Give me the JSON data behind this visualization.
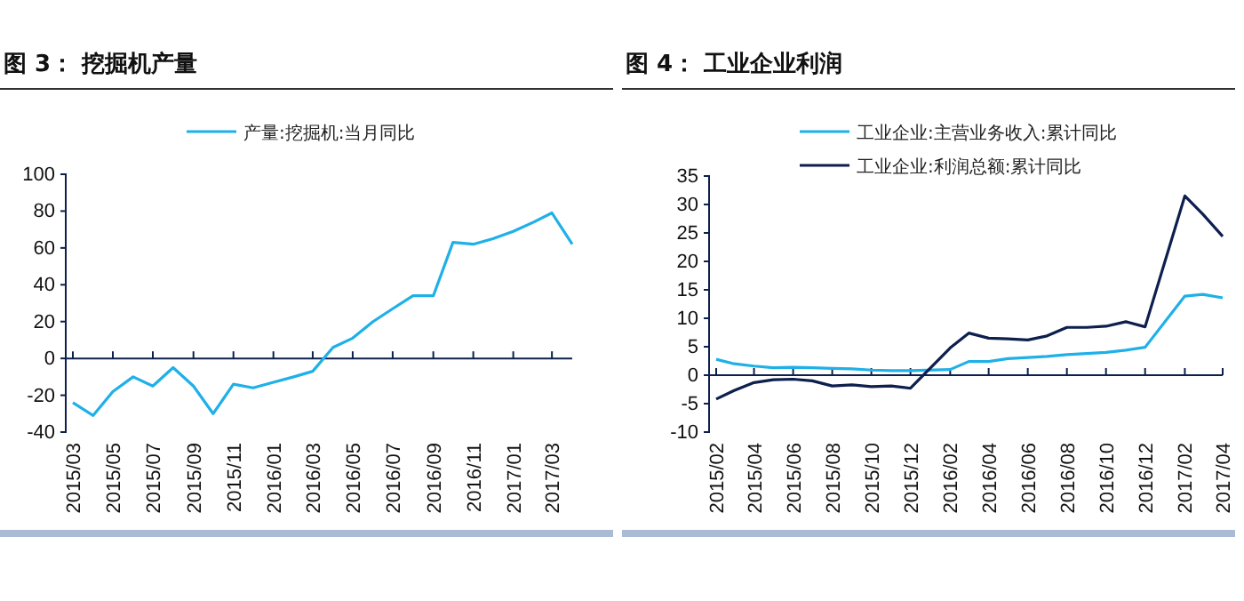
{
  "chart_data": [
    {
      "type": "line",
      "title": "图 3：  挖掘机产量",
      "legend": "top",
      "ylim": [
        -40,
        100
      ],
      "yticks": [
        -40,
        -20,
        0,
        20,
        40,
        60,
        80,
        100
      ],
      "xlim": [
        "2015-03",
        "2017-04"
      ],
      "xticks": [
        {
          "value": "2015-03",
          "label": "2015/03"
        },
        {
          "value": "2015-05",
          "label": "2015/05"
        },
        {
          "value": "2015-07",
          "label": "2015/07"
        },
        {
          "value": "2015-09",
          "label": "2015/09"
        },
        {
          "value": "2015-11",
          "label": "2015/11"
        },
        {
          "value": "2016-01",
          "label": "2016/01"
        },
        {
          "value": "2016-03",
          "label": "2016/03"
        },
        {
          "value": "2016-05",
          "label": "2016/05"
        },
        {
          "value": "2016-07",
          "label": "2016/07"
        },
        {
          "value": "2016-09",
          "label": "2016/09"
        },
        {
          "value": "2016-11",
          "label": "2016/11"
        },
        {
          "value": "2017-01",
          "label": "2017/01"
        },
        {
          "value": "2017-03",
          "label": "2017/03"
        }
      ],
      "x": [
        "2015-03",
        "2015-04",
        "2015-05",
        "2015-06",
        "2015-07",
        "2015-08",
        "2015-09",
        "2015-10",
        "2015-11",
        "2015-12",
        "2016-01",
        "2016-02",
        "2016-03",
        "2016-04",
        "2016-05",
        "2016-06",
        "2016-07",
        "2016-08",
        "2016-09",
        "2016-10",
        "2016-11",
        "2016-12",
        "2017-01",
        "2017-02",
        "2017-03",
        "2017-04"
      ],
      "series": [
        {
          "name": "产量:挖掘机:当月同比",
          "color": "#1fb0e8",
          "values": [
            -24,
            -31,
            -18,
            -10,
            -15,
            -5,
            -15,
            -30,
            -14,
            -16,
            -13,
            -10,
            -7,
            6,
            11,
            20,
            27,
            34,
            34,
            63,
            62,
            65,
            69,
            74,
            79,
            62
          ]
        }
      ]
    },
    {
      "type": "line",
      "title": "图 4：     工业企业利润",
      "legend": "top",
      "ylim": [
        -10,
        35
      ],
      "yticks": [
        -10,
        -5,
        0,
        5,
        10,
        15,
        20,
        25,
        30,
        35
      ],
      "xlim": [
        "2015-02",
        "2017-04"
      ],
      "xticks": [
        {
          "value": "2015-02",
          "label": "2015/02"
        },
        {
          "value": "2015-04",
          "label": "2015/04"
        },
        {
          "value": "2015-06",
          "label": "2015/06"
        },
        {
          "value": "2015-08",
          "label": "2015/08"
        },
        {
          "value": "2015-10",
          "label": "2015/10"
        },
        {
          "value": "2015-12",
          "label": "2015/12"
        },
        {
          "value": "2016-02",
          "label": "2016/02"
        },
        {
          "value": "2016-04",
          "label": "2016/04"
        },
        {
          "value": "2016-06",
          "label": "2016/06"
        },
        {
          "value": "2016-08",
          "label": "2016/08"
        },
        {
          "value": "2016-10",
          "label": "2016/10"
        },
        {
          "value": "2016-12",
          "label": "2016/12"
        },
        {
          "value": "2017-02",
          "label": "2017/02"
        },
        {
          "value": "2017-04",
          "label": "2017/04"
        }
      ],
      "x": [
        "2015-02",
        "2015-03",
        "2015-04",
        "2015-05",
        "2015-06",
        "2015-07",
        "2015-08",
        "2015-09",
        "2015-10",
        "2015-11",
        "2015-12",
        "2016-02",
        "2016-03",
        "2016-04",
        "2016-05",
        "2016-06",
        "2016-07",
        "2016-08",
        "2016-09",
        "2016-10",
        "2016-11",
        "2016-12",
        "2017-02",
        "2017-03",
        "2017-04"
      ],
      "series": [
        {
          "name": "工业企业:主营业务收入:累计同比",
          "color": "#1fb0e8",
          "values": [
            2.8,
            2.0,
            1.6,
            1.3,
            1.4,
            1.3,
            1.2,
            1.1,
            0.9,
            0.8,
            0.8,
            1.0,
            2.4,
            2.4,
            2.9,
            3.1,
            3.3,
            3.6,
            3.8,
            4.0,
            4.4,
            4.9,
            13.9,
            14.2,
            13.6
          ]
        },
        {
          "name": "工业企业:利润总额:累计同比",
          "color": "#0d1f4d",
          "values": [
            -4.2,
            -2.7,
            -1.3,
            -0.8,
            -0.7,
            -1.0,
            -1.9,
            -1.7,
            -2.0,
            -1.9,
            -2.3,
            4.8,
            7.4,
            6.5,
            6.4,
            6.2,
            6.9,
            8.4,
            8.4,
            8.6,
            9.4,
            8.5,
            31.5,
            28.3,
            24.4
          ]
        }
      ]
    }
  ]
}
